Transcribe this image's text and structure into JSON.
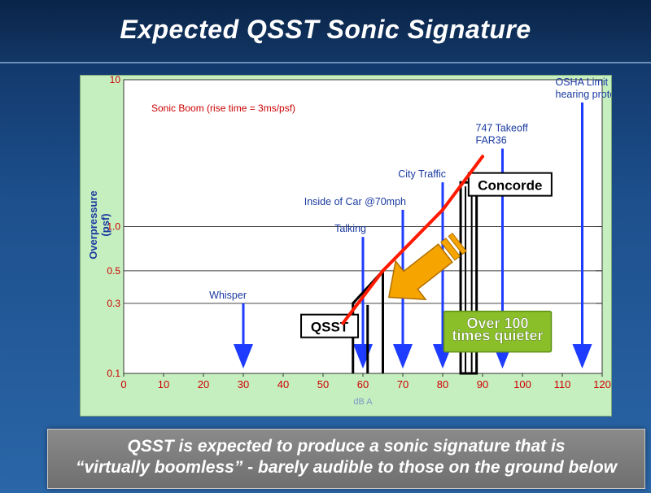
{
  "slide": {
    "title": "Expected QSST Sonic Signature",
    "caption_line1": "QSST is expected to produce a sonic signature that is",
    "caption_line2": "“virtually boomless” - barely audible to those on the ground below"
  },
  "colors": {
    "panel_bg": "#c6efbf",
    "plot_bg": "#ffffff",
    "axis_text": "#cc0000",
    "label_text": "#1a3aa0",
    "arrow": "#1e3cff",
    "boom_line": "#ff1a00",
    "quieter_arrow": "#f5a400",
    "quieter_box": "#8bbf2a"
  },
  "chart_data": {
    "type": "line",
    "x_scale": "linear",
    "y_scale": "log",
    "xlim": [
      0,
      120
    ],
    "ylim": [
      0.1,
      10
    ],
    "xlabel": "dB A",
    "ylabel": "Overpressure (psf)",
    "xticks": [
      0,
      10,
      20,
      30,
      40,
      50,
      60,
      70,
      80,
      90,
      100,
      110,
      120
    ],
    "yticks": [
      {
        "value": 0.1,
        "label": "0.1"
      },
      {
        "value": 0.3,
        "label": "0.3"
      },
      {
        "value": 0.5,
        "label": "0.5"
      },
      {
        "value": 1.0,
        "label": "1.0"
      },
      {
        "value": 10,
        "label": "10"
      }
    ],
    "gridlines_y": [
      0.3,
      0.5,
      1.0
    ],
    "series": [
      {
        "name": "Sonic Boom (rise time = 3ms/psf)",
        "points": [
          [
            55,
            0.22
          ],
          [
            65,
            0.5
          ],
          [
            80,
            1.3
          ],
          [
            90,
            3.0
          ]
        ]
      }
    ],
    "noise_markers": [
      {
        "label": "Whisper",
        "x": 30,
        "y_top": 0.3
      },
      {
        "label": "Talking",
        "x": 60,
        "y_top": 0.85
      },
      {
        "label": "Inside of Car @70mph",
        "x": 70,
        "y_top": 1.3
      },
      {
        "label": "City Traffic",
        "x": 80,
        "y_top": 2.0
      },
      {
        "label": "747 Takeoff\nFAR36",
        "x": 95,
        "y_top": 3.4
      },
      {
        "label": "OSHA Limit without\nhearing protection",
        "x": 115,
        "y_top": 7.0
      }
    ],
    "signatures": [
      {
        "label": "QSST",
        "x_start": 57.5,
        "x_mid": 65,
        "x_end": 65,
        "peak": 0.5,
        "start_level": 0.3
      },
      {
        "label": "Concorde",
        "x_start": 84.5,
        "x_mid": 88.5,
        "x_end": 88.5,
        "peak": 2.0,
        "start_level": 2.0
      }
    ],
    "annotation": "Over 100\ntimes quieter"
  }
}
